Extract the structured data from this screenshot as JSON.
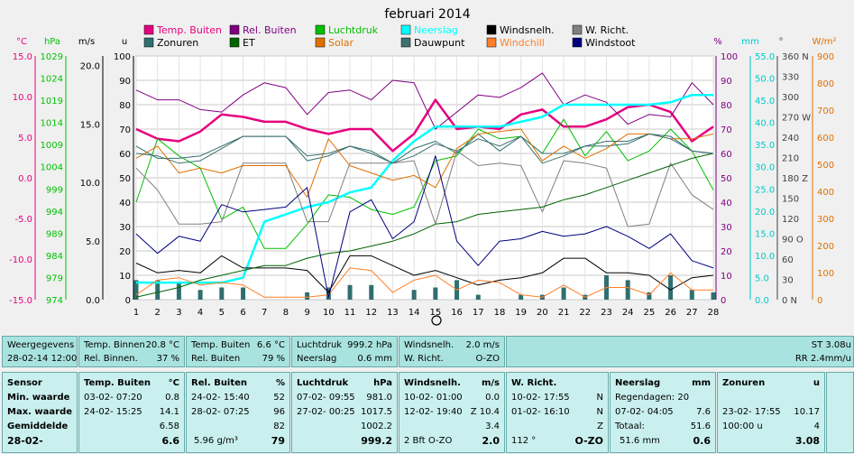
{
  "chart_data": {
    "type": "line",
    "title": "februari 2014",
    "x": [
      1,
      2,
      3,
      4,
      5,
      6,
      7,
      8,
      9,
      10,
      11,
      12,
      13,
      14,
      15,
      16,
      17,
      18,
      19,
      20,
      21,
      22,
      23,
      24,
      25,
      26,
      27,
      28
    ],
    "xlim": [
      1,
      28
    ],
    "legend_position": "top",
    "axes": [
      {
        "label": "°C",
        "color": "#e6007e",
        "min": -15,
        "max": 15,
        "ticks": [
          "15.0",
          "10.0",
          "5.0",
          "0.0",
          "-5.0",
          "-10.0",
          "-15.0"
        ]
      },
      {
        "label": "hPa",
        "color": "#00c000",
        "min": 974,
        "max": 1029,
        "ticks": [
          "1029",
          "1024",
          "1019",
          "1014",
          "1009",
          "1004",
          "999",
          "994",
          "989",
          "984",
          "979",
          "974"
        ]
      },
      {
        "label": "m/s",
        "color": "#000000",
        "min": 0,
        "max": 20.8,
        "ticks": [
          "20.0",
          "15.0",
          "10.0",
          "5.0",
          "0.0"
        ]
      },
      {
        "label": "u",
        "color": "#000000",
        "min": 0,
        "max": 100,
        "ticks": [
          "100",
          "90",
          "80",
          "70",
          "60",
          "50",
          "40",
          "30",
          "20",
          "10",
          "0"
        ]
      },
      {
        "label": "%",
        "color": "#800080",
        "min": 0,
        "max": 100,
        "ticks": [
          "100",
          "90",
          "80",
          "70",
          "60",
          "50",
          "40",
          "30",
          "20",
          "10",
          "0"
        ]
      },
      {
        "label": "mm",
        "color": "#00c8c8",
        "min": 0,
        "max": 55,
        "ticks": [
          "55.0",
          "50.0",
          "45.0",
          "40.0",
          "35.0",
          "30.0",
          "25.0",
          "20.0",
          "15.0",
          "10.0",
          "5.0",
          "0.0"
        ]
      },
      {
        "label": "°",
        "color": "#404040",
        "min": 0,
        "max": 360,
        "ticks": [
          "360 N",
          "330",
          "300",
          "270 W",
          "240",
          "210",
          "180 Z",
          "150",
          "120",
          "90 O",
          "60",
          "30",
          "0 N"
        ]
      },
      {
        "label": "W/m²",
        "color": "#e07000",
        "min": 0,
        "max": 900,
        "ticks": [
          "900",
          "800",
          "700",
          "600",
          "500",
          "400",
          "300",
          "200",
          "100",
          "0"
        ]
      }
    ],
    "series": [
      {
        "name": "Temp. Buiten",
        "color": "#e6007e",
        "axis": 3,
        "width": 2.5,
        "values": [
          70,
          66,
          65,
          69,
          76,
          75,
          73,
          73,
          70,
          68,
          70,
          70,
          61,
          68,
          82,
          70,
          71,
          70,
          76,
          78,
          71,
          71,
          74,
          79,
          80,
          77,
          65,
          71
        ]
      },
      {
        "name": "Rel. Buiten",
        "color": "#800080",
        "axis": 3,
        "width": 1,
        "values": [
          86,
          82,
          82,
          78,
          77,
          84,
          89,
          87,
          76,
          85,
          86,
          82,
          90,
          89,
          70,
          77,
          84,
          83,
          87,
          93,
          80,
          84,
          81,
          72,
          76,
          75,
          89,
          80
        ]
      },
      {
        "name": "Luchtdruk",
        "color": "#00c000",
        "axis": 3,
        "width": 1,
        "values": [
          40,
          66,
          59,
          54,
          33,
          38,
          21,
          21,
          31,
          43,
          42,
          37,
          35,
          38,
          57,
          59,
          70,
          66,
          67,
          60,
          74,
          59,
          69,
          57,
          61,
          70,
          61,
          45
        ]
      },
      {
        "name": "Neerslag",
        "color": "#00ffff",
        "axis": 3,
        "width": 2.5,
        "values": [
          7,
          7,
          7,
          7,
          7,
          9,
          32,
          35,
          38,
          40,
          44,
          46,
          57,
          65,
          71,
          71,
          71,
          71,
          73,
          75,
          80,
          80,
          80,
          80,
          80,
          81,
          84,
          84
        ]
      },
      {
        "name": "Windsnelh.",
        "color": "#000000",
        "axis": 3,
        "width": 1,
        "values": [
          15,
          11,
          12,
          11,
          18,
          13,
          13,
          13,
          12,
          3,
          18,
          18,
          14,
          10,
          12,
          9,
          6,
          8,
          9,
          11,
          17,
          17,
          11,
          11,
          10,
          4,
          9,
          10
        ]
      },
      {
        "name": "W. Richt.",
        "color": "#808080",
        "axis": 3,
        "width": 1,
        "values": [
          54,
          45,
          31,
          31,
          32,
          56,
          56,
          56,
          32,
          32,
          56,
          56,
          56,
          57,
          31,
          61,
          55,
          56,
          55,
          36,
          57,
          56,
          54,
          30,
          31,
          56,
          43,
          37
        ]
      },
      {
        "name": "Zonuren",
        "color": "#2f6f6f",
        "axis": 3,
        "width": 1,
        "values": [
          63,
          58,
          58,
          59,
          63,
          67,
          67,
          67,
          57,
          59,
          63,
          61,
          56,
          62,
          65,
          60,
          68,
          61,
          67,
          60,
          60,
          63,
          63,
          64,
          68,
          67,
          61,
          60
        ]
      },
      {
        "name": "ET",
        "color": "#006400",
        "axis": 3,
        "width": 1,
        "values": [
          1,
          3,
          5,
          8,
          10,
          12,
          14,
          14,
          17,
          19,
          20,
          22,
          24,
          27,
          31,
          32,
          35,
          36,
          37,
          38,
          41,
          43,
          46,
          49,
          52,
          55,
          58,
          60
        ]
      },
      {
        "name": "Solar",
        "color": "#e07000",
        "axis": 3,
        "width": 1,
        "values": [
          58,
          63,
          52,
          54,
          52,
          55,
          55,
          55,
          42,
          66,
          55,
          52,
          49,
          51,
          46,
          62,
          68,
          69,
          70,
          57,
          63,
          58,
          62,
          68,
          68,
          66,
          66,
          68
        ]
      },
      {
        "name": "Dauwpunt",
        "color": "#407070",
        "axis": 3,
        "width": 1,
        "values": [
          60,
          59,
          56,
          57,
          62,
          67,
          67,
          67,
          59,
          60,
          63,
          60,
          56,
          59,
          64,
          61,
          66,
          63,
          67,
          56,
          59,
          63,
          65,
          65,
          68,
          66,
          61,
          60
        ]
      },
      {
        "name": "Windchill",
        "color": "#ff7f27",
        "axis": 3,
        "width": 1,
        "values": [
          2,
          8,
          9,
          6,
          7,
          6,
          1,
          1,
          1,
          2,
          13,
          12,
          3,
          8,
          10,
          4,
          8,
          7,
          2,
          1,
          6,
          1,
          5,
          5,
          2,
          11,
          4,
          4
        ]
      },
      {
        "name": "Windstoot",
        "color": "#000080",
        "axis": 3,
        "width": 1,
        "values": [
          27,
          19,
          26,
          24,
          39,
          36,
          37,
          38,
          46,
          1,
          36,
          41,
          25,
          32,
          59,
          24,
          14,
          24,
          25,
          28,
          26,
          27,
          30,
          26,
          21,
          27,
          16,
          13
        ]
      }
    ],
    "bars": {
      "name": "Zonuren",
      "color": "#2f6f6f",
      "values": [
        8,
        8,
        7,
        4,
        5,
        5,
        0,
        0,
        3,
        5,
        6,
        6,
        0,
        4,
        5,
        8,
        2,
        0,
        2,
        2,
        5,
        2,
        10,
        8,
        3,
        10,
        4,
        3
      ]
    }
  },
  "info_top": {
    "weergegevens": "Weergegevens",
    "datetime": "28-02-14 12:00",
    "temp_binnen_label": "Temp. Binnen",
    "temp_binnen_value": "20.8 °C",
    "rel_binnen_label": "Rel. Binnen.",
    "rel_binnen_value": "37 %",
    "temp_buiten_label": "Temp. Buiten",
    "temp_buiten_value": "6.6 °C",
    "rel_buiten_label": "Rel. Buiten",
    "rel_buiten_value": "79 %",
    "luchtdruk_label": "Luchtdruk",
    "luchtdruk_value": "999.2 hPa",
    "neerslag_label": "Neerslag",
    "neerslag_value": "0.6 mm",
    "windsnelh_label": "Windsnelh.",
    "windsnelh_value": "2.0 m/s",
    "wricht_label": "W. Richt.",
    "wricht_value": "O-ZO",
    "st": "ST 3.08u",
    "rr": "RR 2.4mm/u"
  },
  "info_bottom": {
    "sensor": "Sensor",
    "min": "Min. waarde",
    "max": "Max. waarde",
    "gem": "Gemiddelde",
    "date": "28-02-",
    "tb_title": "Temp. Buiten",
    "tb_unit": "°C",
    "tb_min_d": "03-02- 07:20",
    "tb_min_v": "0.8",
    "tb_max_d": "24-02- 15:25",
    "tb_max_v": "14.1",
    "tb_avg": "6.58",
    "tb_cur": "6.6",
    "rb_title": "Rel. Buiten",
    "rb_unit": "%",
    "rb_min_d": "24-02- 15:40",
    "rb_min_v": "52",
    "rb_max_d": "28-02- 07:25",
    "rb_max_v": "96",
    "rb_avg": "82",
    "rb_abs": "5.96 g/m³",
    "rb_cur": "79",
    "ld_title": "Luchtdruk",
    "ld_unit": "hPa",
    "ld_min_d": "07-02- 09:55",
    "ld_min_v": "981.0",
    "ld_max_d": "27-02- 00:25",
    "ld_max_v": "1017.5",
    "ld_avg": "1002.2",
    "ld_cur": "999.2",
    "ws_title": "Windsnelh.",
    "ws_unit": "m/s",
    "ws_min_d": "10-02- 01:00",
    "ws_min_v": "0.0",
    "ws_max_d": "12-02- 19:40",
    "ws_max_v": "Z 10.4",
    "ws_avg": "3.4",
    "ws_bft": "2 Bft O-ZO",
    "ws_cur": "2.0",
    "wr_title": "W. Richt.",
    "wr_min_d": "10-02- 17:55",
    "wr_min_v": "N",
    "wr_max_d": "01-02- 16:10",
    "wr_max_v": "N",
    "wr_avg": "Z",
    "wr_deg": "112 °",
    "wr_cur": "O-ZO",
    "ns_title": "Neerslag",
    "ns_unit": "mm",
    "ns_days": "Regendagen: 20",
    "ns_max_d": "07-02- 04:05",
    "ns_max_v": "7.6",
    "ns_tot_l": "Totaal:",
    "ns_tot_v": "51.6",
    "ns_mm": "51.6 mm",
    "ns_cur": "0.6",
    "zu_title": "Zonuren",
    "zu_unit": "u",
    "zu_max_d": "23-02- 17:55",
    "zu_max_v": "10.17",
    "zu_tot_l": "100:00 u",
    "zu_tot_v": "4",
    "zu_cur": "3.08"
  }
}
